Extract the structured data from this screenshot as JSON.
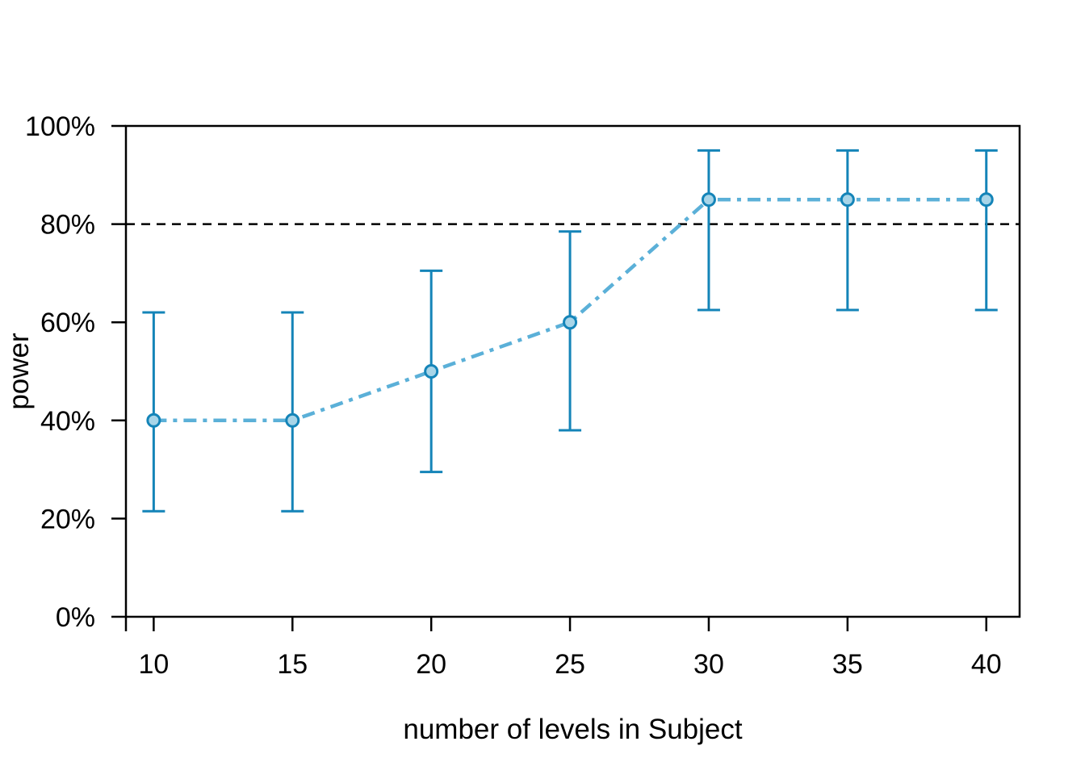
{
  "chart_data": {
    "type": "line",
    "title": "",
    "xlabel": "number of levels in Subject",
    "ylabel": "power",
    "x": [
      10,
      15,
      20,
      25,
      30,
      35,
      40
    ],
    "series": [
      {
        "name": "power",
        "values": [
          40,
          40,
          50,
          60,
          85,
          85,
          85
        ],
        "ci_low": [
          21.5,
          21.5,
          29.5,
          38,
          62.5,
          62.5,
          62.5
        ],
        "ci_high": [
          62,
          62,
          70.5,
          78.5,
          95,
          95,
          95
        ]
      }
    ],
    "threshold_line": {
      "value": 80,
      "style": "dashed"
    },
    "x_ticks": [
      {
        "value": 10,
        "label": "10"
      },
      {
        "value": 15,
        "label": "15"
      },
      {
        "value": 20,
        "label": "20"
      },
      {
        "value": 25,
        "label": "25"
      },
      {
        "value": 30,
        "label": "30"
      },
      {
        "value": 35,
        "label": "35"
      },
      {
        "value": 40,
        "label": "40"
      }
    ],
    "y_ticks": [
      {
        "value": 0,
        "label": "0%"
      },
      {
        "value": 20,
        "label": "20%"
      },
      {
        "value": 40,
        "label": "40%"
      },
      {
        "value": 60,
        "label": "60%"
      },
      {
        "value": 80,
        "label": "80%"
      },
      {
        "value": 100,
        "label": "100%"
      }
    ],
    "xlim": [
      9,
      41.2
    ],
    "ylim": [
      0,
      100
    ],
    "grid": "off",
    "legend": "none",
    "colors": {
      "marker_fill": "#A8D5E8",
      "marker_stroke": "#1484B8",
      "errorbar": "#1484B8",
      "line": "#5BB0D8",
      "threshold": "#000000",
      "axis": "#000000"
    }
  }
}
